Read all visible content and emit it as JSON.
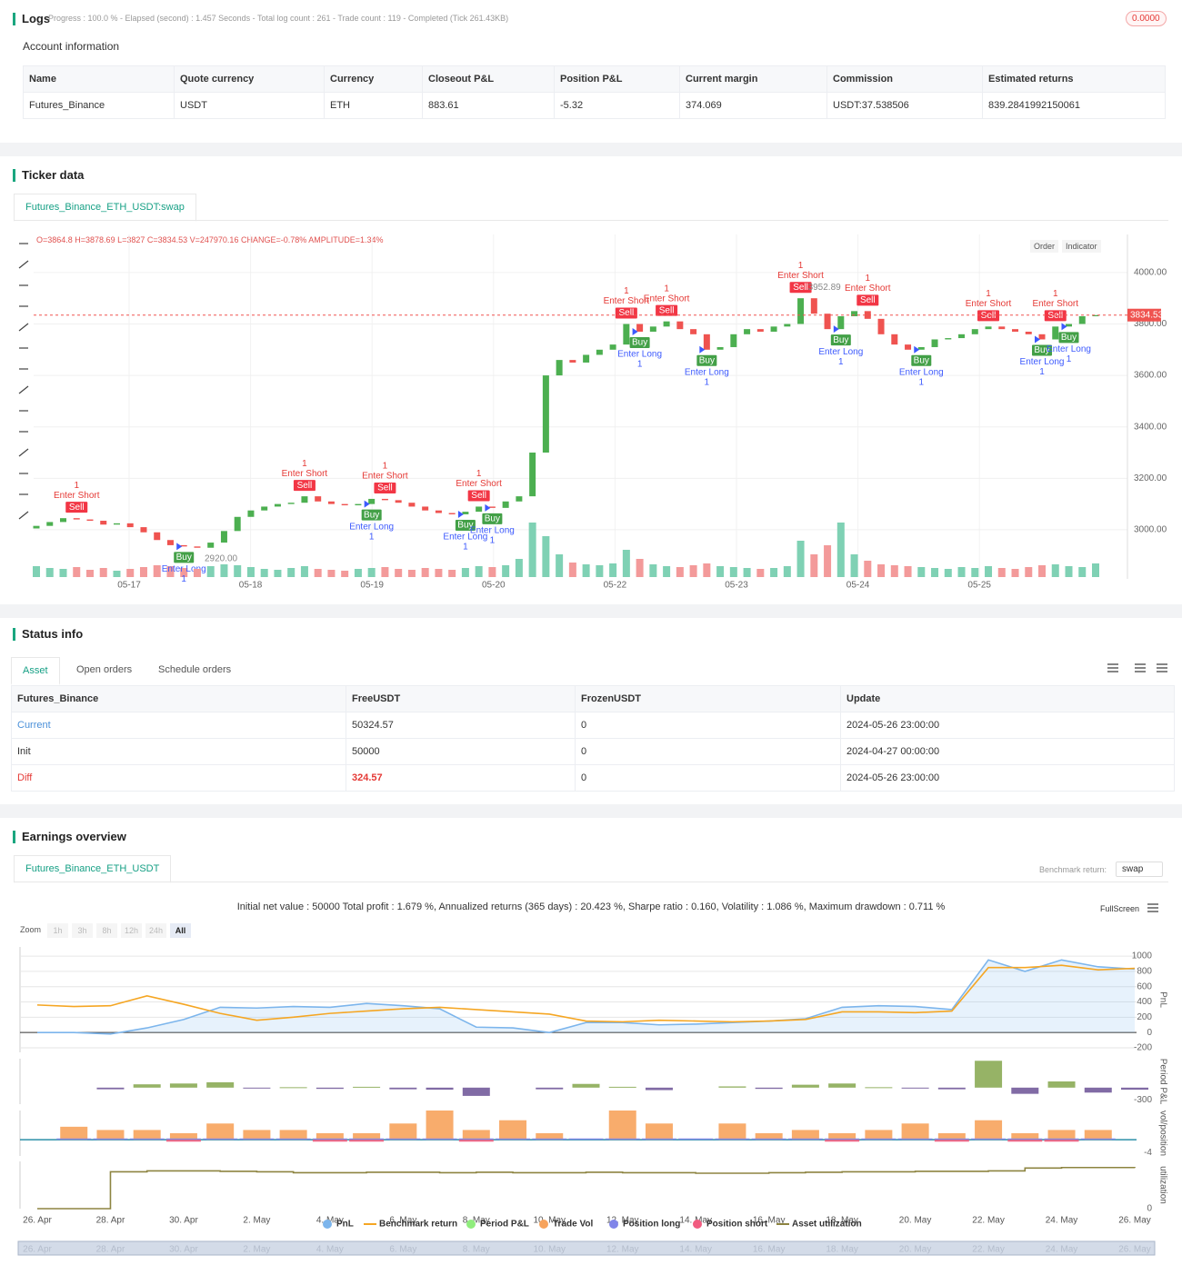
{
  "logs": {
    "title": "Logs",
    "status": "Progress : 100.0 % - Elapsed (second) : 1.457 Seconds - Total log count : 261 - Trade count : 119 - Completed (Tick 261.43KB)",
    "badge": "0.0000"
  },
  "account": {
    "title": "Account information",
    "columns": [
      "Name",
      "Quote currency",
      "Currency",
      "Closeout P&L",
      "Position P&L",
      "Current margin",
      "Commission",
      "Estimated returns"
    ],
    "rows": [
      [
        "Futures_Binance",
        "USDT",
        "ETH",
        "883.61",
        "-5.32",
        "374.069",
        "USDT:37.538506",
        "839.2841992150061"
      ]
    ]
  },
  "ticker": {
    "title": "Ticker data",
    "tab": "Futures_Binance_ETH_USDT:swap",
    "ohlc": "O=3864.8 H=3878.69 L=3827 C=3834.53 V=247970.16 CHANGE=-0.78% AMPLITUDE=1.34%",
    "buttons": [
      "Order",
      "Indicator"
    ],
    "chart": {
      "type": "candlestick",
      "ylim": [
        2816,
        4148
      ],
      "yticks": [
        {
          "value": 3000,
          "label": "3000.00"
        },
        {
          "value": 3200,
          "label": "3200.00"
        },
        {
          "value": 3400,
          "label": "3400.00"
        },
        {
          "value": 3600,
          "label": "3600.00"
        },
        {
          "value": 3800,
          "label": "3800.00"
        },
        {
          "value": 4000,
          "label": "4000.00"
        }
      ],
      "xlabels": [
        "05-17",
        "05-18",
        "05-19",
        "05-20",
        "05-22",
        "05-23",
        "05-24",
        "05-25"
      ],
      "last_label": "3834.53",
      "high_label": "3952.89",
      "low_label": "2920.00",
      "up_color": "#4caf50",
      "down_color": "#ef5350",
      "up_volume_color": "#7fd1b4",
      "down_volume_color": "#f39a9a",
      "sell_color": "#f23645",
      "buy_color": "#43a047",
      "short_text_color": "#e53935",
      "long_text_color": "#3d5afe",
      "candles": [
        {
          "open": 3005,
          "close": 3015,
          "volume": 12
        },
        {
          "close": 3030,
          "volume": 10
        },
        {
          "close": 3045,
          "volume": 9
        },
        {
          "close": 3040,
          "volume": 11,
          "signal": {
            "text": "Enter Short",
            "badge": "Sell",
            "qty": 1,
            "place": "above"
          }
        },
        {
          "close": 3035,
          "volume": 8
        },
        {
          "close": 3020,
          "volume": 10
        },
        {
          "close": 3025,
          "volume": 7
        },
        {
          "close": 3010,
          "volume": 9
        },
        {
          "close": 2990,
          "volume": 11
        },
        {
          "close": 2960,
          "volume": 13
        },
        {
          "close": 2940,
          "volume": 12
        },
        {
          "close": 2935,
          "volume": 10,
          "signal": {
            "text": "Enter Long",
            "badge": "Buy",
            "qty": 1,
            "place": "below"
          }
        },
        {
          "close": 2930,
          "volume": 9
        },
        {
          "close": 2950,
          "volume": 12
        },
        {
          "close": 2995,
          "volume": 14
        },
        {
          "close": 3050,
          "volume": 13
        },
        {
          "close": 3075,
          "volume": 11
        },
        {
          "close": 3090,
          "volume": 9
        },
        {
          "close": 3100,
          "volume": 8
        },
        {
          "close": 3105,
          "volume": 10
        },
        {
          "close": 3130,
          "volume": 12,
          "signal": {
            "text": "Enter Short",
            "badge": "Sell",
            "qty": 1,
            "place": "above"
          }
        },
        {
          "close": 3110,
          "volume": 9
        },
        {
          "close": 3100,
          "volume": 8
        },
        {
          "close": 3095,
          "volume": 7
        },
        {
          "close": 3100,
          "volume": 9
        },
        {
          "close": 3120,
          "volume": 10,
          "signal": {
            "text": "Enter Long",
            "badge": "Buy",
            "qty": 1,
            "place": "below"
          }
        },
        {
          "close": 3115,
          "volume": 11,
          "signal": {
            "text": "Enter Short",
            "badge": "Sell",
            "qty": 1,
            "place": "above"
          }
        },
        {
          "close": 3105,
          "volume": 9
        },
        {
          "close": 3090,
          "volume": 8
        },
        {
          "close": 3075,
          "volume": 10
        },
        {
          "close": 3065,
          "volume": 9
        },
        {
          "close": 3060,
          "volume": 8
        },
        {
          "close": 3070,
          "volume": 10,
          "signal": {
            "text": "Enter Long",
            "badge": "Buy",
            "qty": 1,
            "place": "below"
          }
        },
        {
          "close": 3090,
          "volume": 12,
          "signal": {
            "text": "Enter Short",
            "badge": "Sell",
            "qty": 1,
            "place": "above"
          }
        },
        {
          "close": 3085,
          "volume": 11,
          "signal": {
            "text": "Enter Long",
            "badge": "Buy",
            "qty": 1,
            "place": "below"
          }
        },
        {
          "close": 3110,
          "volume": 13
        },
        {
          "close": 3130,
          "volume": 20
        },
        {
          "close": 3300,
          "volume": 60
        },
        {
          "close": 3600,
          "volume": 45
        },
        {
          "close": 3660,
          "volume": 25
        },
        {
          "close": 3650,
          "volume": 16
        },
        {
          "close": 3680,
          "volume": 14
        },
        {
          "close": 3700,
          "volume": 13
        },
        {
          "close": 3720,
          "volume": 15
        },
        {
          "close": 3800,
          "volume": 30,
          "signal": {
            "text": "Enter Short",
            "badge": "Sell",
            "qty": 1,
            "place": "above"
          }
        },
        {
          "close": 3770,
          "volume": 20,
          "signal": {
            "text": "Enter Long",
            "badge": "Buy",
            "qty": 1,
            "place": "below"
          }
        },
        {
          "close": 3790,
          "volume": 14
        },
        {
          "close": 3810,
          "volume": 12,
          "signal": {
            "text": "Enter Short",
            "badge": "Sell",
            "qty": 1,
            "place": "above"
          }
        },
        {
          "close": 3780,
          "volume": 11
        },
        {
          "close": 3760,
          "volume": 13
        },
        {
          "close": 3700,
          "volume": 15,
          "signal": {
            "text": "Enter Long",
            "badge": "Buy",
            "qty": 1,
            "place": "below"
          }
        },
        {
          "close": 3710,
          "volume": 12
        },
        {
          "close": 3760,
          "volume": 11
        },
        {
          "close": 3780,
          "volume": 10
        },
        {
          "close": 3770,
          "volume": 9
        },
        {
          "close": 3790,
          "volume": 10
        },
        {
          "close": 3800,
          "volume": 12
        },
        {
          "close": 3900,
          "volume": 40,
          "signal": {
            "text": "Enter Short",
            "badge": "Sell",
            "qty": 1,
            "place": "above"
          }
        },
        {
          "close": 3840,
          "volume": 25
        },
        {
          "close": 3780,
          "volume": 35
        },
        {
          "close": 3830,
          "volume": 60,
          "signal": {
            "text": "Enter Long",
            "badge": "Buy",
            "qty": 1,
            "place": "below"
          }
        },
        {
          "close": 3850,
          "volume": 25
        },
        {
          "close": 3820,
          "volume": 18,
          "signal": {
            "text": "Enter Short",
            "badge": "Sell",
            "qty": 1,
            "place": "above"
          }
        },
        {
          "close": 3760,
          "volume": 14
        },
        {
          "close": 3720,
          "volume": 13
        },
        {
          "close": 3700,
          "volume": 12
        },
        {
          "close": 3710,
          "volume": 11,
          "signal": {
            "text": "Enter Long",
            "badge": "Buy",
            "qty": 1,
            "place": "below"
          }
        },
        {
          "close": 3740,
          "volume": 10
        },
        {
          "close": 3745,
          "volume": 9
        },
        {
          "close": 3760,
          "volume": 11
        },
        {
          "close": 3780,
          "volume": 10
        },
        {
          "close": 3790,
          "volume": 12,
          "signal": {
            "text": "Enter Short",
            "badge": "Sell",
            "qty": 1,
            "place": "above"
          }
        },
        {
          "close": 3780,
          "volume": 10
        },
        {
          "close": 3770,
          "volume": 9
        },
        {
          "close": 3760,
          "volume": 11
        },
        {
          "close": 3740,
          "volume": 13,
          "signal": {
            "text": "Enter Long",
            "badge": "Buy",
            "qty": 1,
            "place": "below"
          }
        },
        {
          "close": 3790,
          "volume": 14,
          "signal": {
            "text": "Enter Short",
            "badge": "Sell",
            "qty": 1,
            "place": "above"
          }
        },
        {
          "close": 3800,
          "volume": 12,
          "signal": {
            "text": "Enter Long",
            "badge": "Buy",
            "qty": 1,
            "place": "below"
          }
        },
        {
          "close": 3830,
          "volume": 11
        },
        {
          "close": 3834.53,
          "volume": 15
        }
      ]
    }
  },
  "status": {
    "title": "Status info",
    "tabs": [
      "Asset",
      "Open orders",
      "Schedule orders"
    ],
    "table": {
      "columns": [
        "Futures_Binance",
        "FreeUSDT",
        "FrozenUSDT",
        "Update"
      ],
      "rows": [
        [
          "Current",
          "50324.57",
          "0",
          "2024-05-26 23:00:00"
        ],
        [
          "Init",
          "50000",
          "0",
          "2024-04-27 00:00:00"
        ],
        [
          "Diff",
          "324.57",
          "0",
          "2024-05-26 23:00:00"
        ]
      ]
    }
  },
  "earnings": {
    "title": "Earnings overview",
    "tab": "Futures_Binance_ETH_USDT",
    "benchmark_label": "Benchmark return:",
    "benchmark_value": "swap",
    "summary": "Initial net value : 50000 Total profit : 1.679 %, Annualized returns (365 days) : 20.423 %, Sharpe ratio : 0.160, Volatility : 1.086 %, Maximum drawdown : 0.711 %",
    "fullscreen": "FullScreen",
    "zoom_label": "Zoom",
    "zoom_buttons": [
      "1h",
      "3h",
      "8h",
      "12h",
      "24h",
      "All"
    ],
    "chart": {
      "type": "line",
      "x": [
        "26. Apr",
        null,
        "28. Apr",
        null,
        "30. Apr",
        null,
        "2. May",
        null,
        "4. May",
        null,
        "6. May",
        null,
        "8. May",
        null,
        "10. May",
        null,
        "12. May",
        null,
        "14. May",
        null,
        "16. May",
        null,
        "18. May",
        null,
        "20. May",
        null,
        "22. May",
        null,
        "24. May",
        null,
        "26. May"
      ],
      "panels": [
        {
          "title": "PnL",
          "ylim": [
            -260,
            1120
          ],
          "yticks": [
            -200,
            0,
            200,
            400,
            600,
            800,
            1000
          ],
          "grid": true,
          "series": [
            {
              "name": "PnL",
              "type": "area",
              "color": "#7cb5ec",
              "values": [
                0,
                0,
                -20,
                60,
                170,
                330,
                320,
                340,
                330,
                380,
                350,
                310,
                70,
                60,
                0,
                130,
                130,
                100,
                110,
                130,
                150,
                180,
                330,
                350,
                340,
                300,
                950,
                800,
                950,
                860,
                830
              ]
            },
            {
              "name": "Benchmark return",
              "type": "line",
              "color": "#f5a623",
              "values": [
                360,
                340,
                350,
                480,
                370,
                250,
                160,
                200,
                250,
                280,
                310,
                330,
                300,
                270,
                240,
                150,
                140,
                160,
                150,
                140,
                150,
                170,
                270,
                270,
                260,
                280,
                850,
                850,
                880,
                820,
                840
              ]
            }
          ]
        },
        {
          "title": "Period P&L",
          "ylim": [
            -400,
            700
          ],
          "yticks": [
            -300
          ],
          "grid": false,
          "series": [
            {
              "name": "Period P&L",
              "type": "bar",
              "color": "#90ed7d",
              "colors": [
                "#8bab55",
                "#735b9b"
              ],
              "values": [
                null,
                null,
                -40,
                80,
                100,
                130,
                -20,
                10,
                -30,
                20,
                -40,
                -50,
                -200,
                null,
                -40,
                90,
                20,
                -60,
                null,
                30,
                -30,
                70,
                100,
                10,
                -20,
                -40,
                650,
                -150,
                150,
                -120,
                -50
              ]
            }
          ]
        },
        {
          "title": "vol/position",
          "ylim": [
            -5,
            9
          ],
          "yticks": [
            -4
          ],
          "grid": false,
          "baseline": "#2b8fa8",
          "series": [
            {
              "name": "Trade Vol",
              "type": "bar",
              "color": "#f7a35c",
              "values": [
                null,
                4,
                3,
                3,
                2,
                5,
                3,
                3,
                2,
                2,
                5,
                9,
                3,
                6,
                2,
                null,
                9,
                5,
                null,
                5,
                2,
                3,
                2,
                3,
                5,
                2,
                6,
                2,
                3,
                3,
                null
              ]
            },
            {
              "name": "Position long",
              "type": "bar",
              "color": "#8085e9",
              "values": [
                null,
                0.4,
                0.4,
                0.4,
                0.4,
                0.4,
                0.4,
                0.4,
                0.4,
                0.4,
                0.4,
                0.4,
                0.4,
                0.4,
                0.4,
                0.4,
                0.4,
                0.4,
                0.4,
                0.4,
                0.4,
                0.4,
                0.4,
                0.4,
                0.4,
                0.4,
                0.4,
                0.4,
                0.4,
                0.4,
                null
              ]
            },
            {
              "name": "Position short",
              "type": "bar",
              "color": "#f15c80",
              "values": [
                null,
                null,
                null,
                null,
                -0.6,
                null,
                null,
                null,
                -0.6,
                -0.6,
                null,
                null,
                -0.6,
                null,
                null,
                null,
                null,
                null,
                null,
                null,
                null,
                null,
                -0.6,
                null,
                null,
                -0.6,
                null,
                -0.6,
                -0.6,
                null,
                null
              ]
            }
          ]
        },
        {
          "title": "utilization",
          "ylim": [
            0,
            100
          ],
          "yticks": [
            0
          ],
          "grid": false,
          "series": [
            {
              "name": "Asset utilization",
              "type": "step",
              "color": "#8d8440",
              "values": [
                0,
                0,
                78,
                80,
                80,
                79,
                78,
                76,
                76,
                77,
                77,
                76,
                77,
                76,
                76,
                77,
                76,
                76,
                75,
                75,
                76,
                77,
                78,
                78,
                79,
                79,
                80,
                86,
                87,
                87,
                86
              ]
            }
          ]
        }
      ]
    }
  }
}
